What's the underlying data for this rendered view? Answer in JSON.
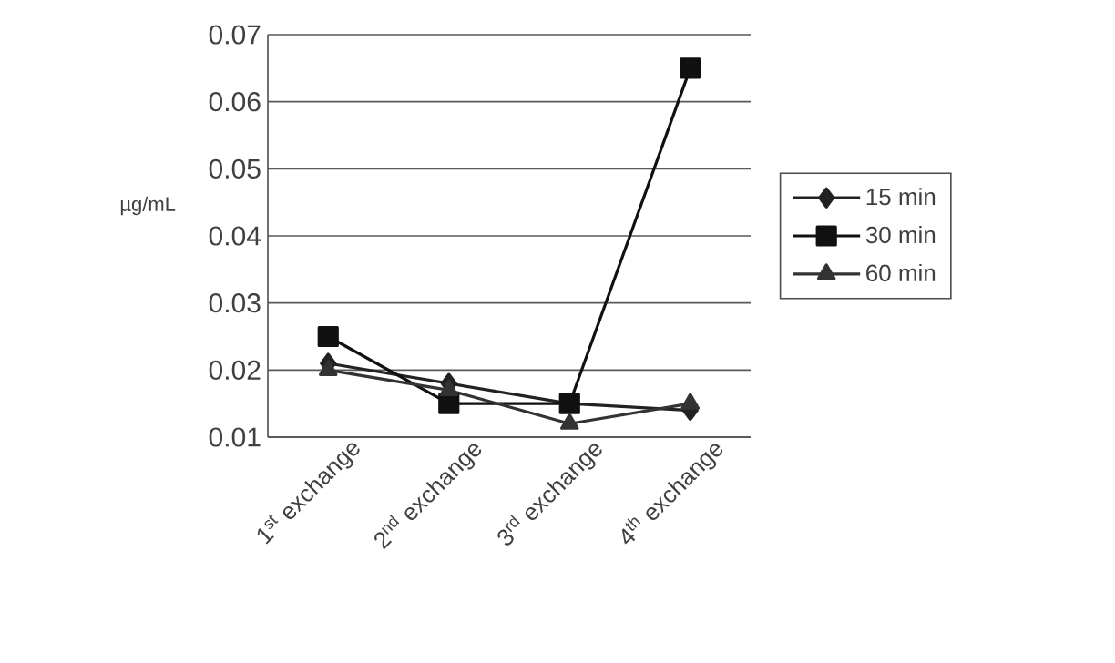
{
  "chart_data": {
    "type": "line",
    "ylabel": "µg/mL",
    "categories": [
      "1$^{st}$ exchange",
      "2$^{nd}$ exchange",
      "3$^{rd}$ exchange",
      "4$^{th}$ exchange"
    ],
    "series": [
      {
        "name": "15 min",
        "color": "#222222",
        "marker": "diamond",
        "values": [
          0.021,
          0.018,
          0.015,
          0.014
        ]
      },
      {
        "name": "30 min",
        "color": "#111111",
        "marker": "square",
        "values": [
          0.025,
          0.015,
          0.015,
          0.065
        ]
      },
      {
        "name": "60 min",
        "color": "#333333",
        "marker": "triangle",
        "values": [
          0.02,
          0.017,
          0.012,
          0.015
        ]
      }
    ],
    "ylim": [
      0.01,
      0.07
    ],
    "yticks": [
      0.01,
      0.02,
      0.03,
      0.04,
      0.05,
      0.06,
      0.07
    ],
    "grid": "y",
    "legend": "right",
    "line_style": "solid"
  }
}
